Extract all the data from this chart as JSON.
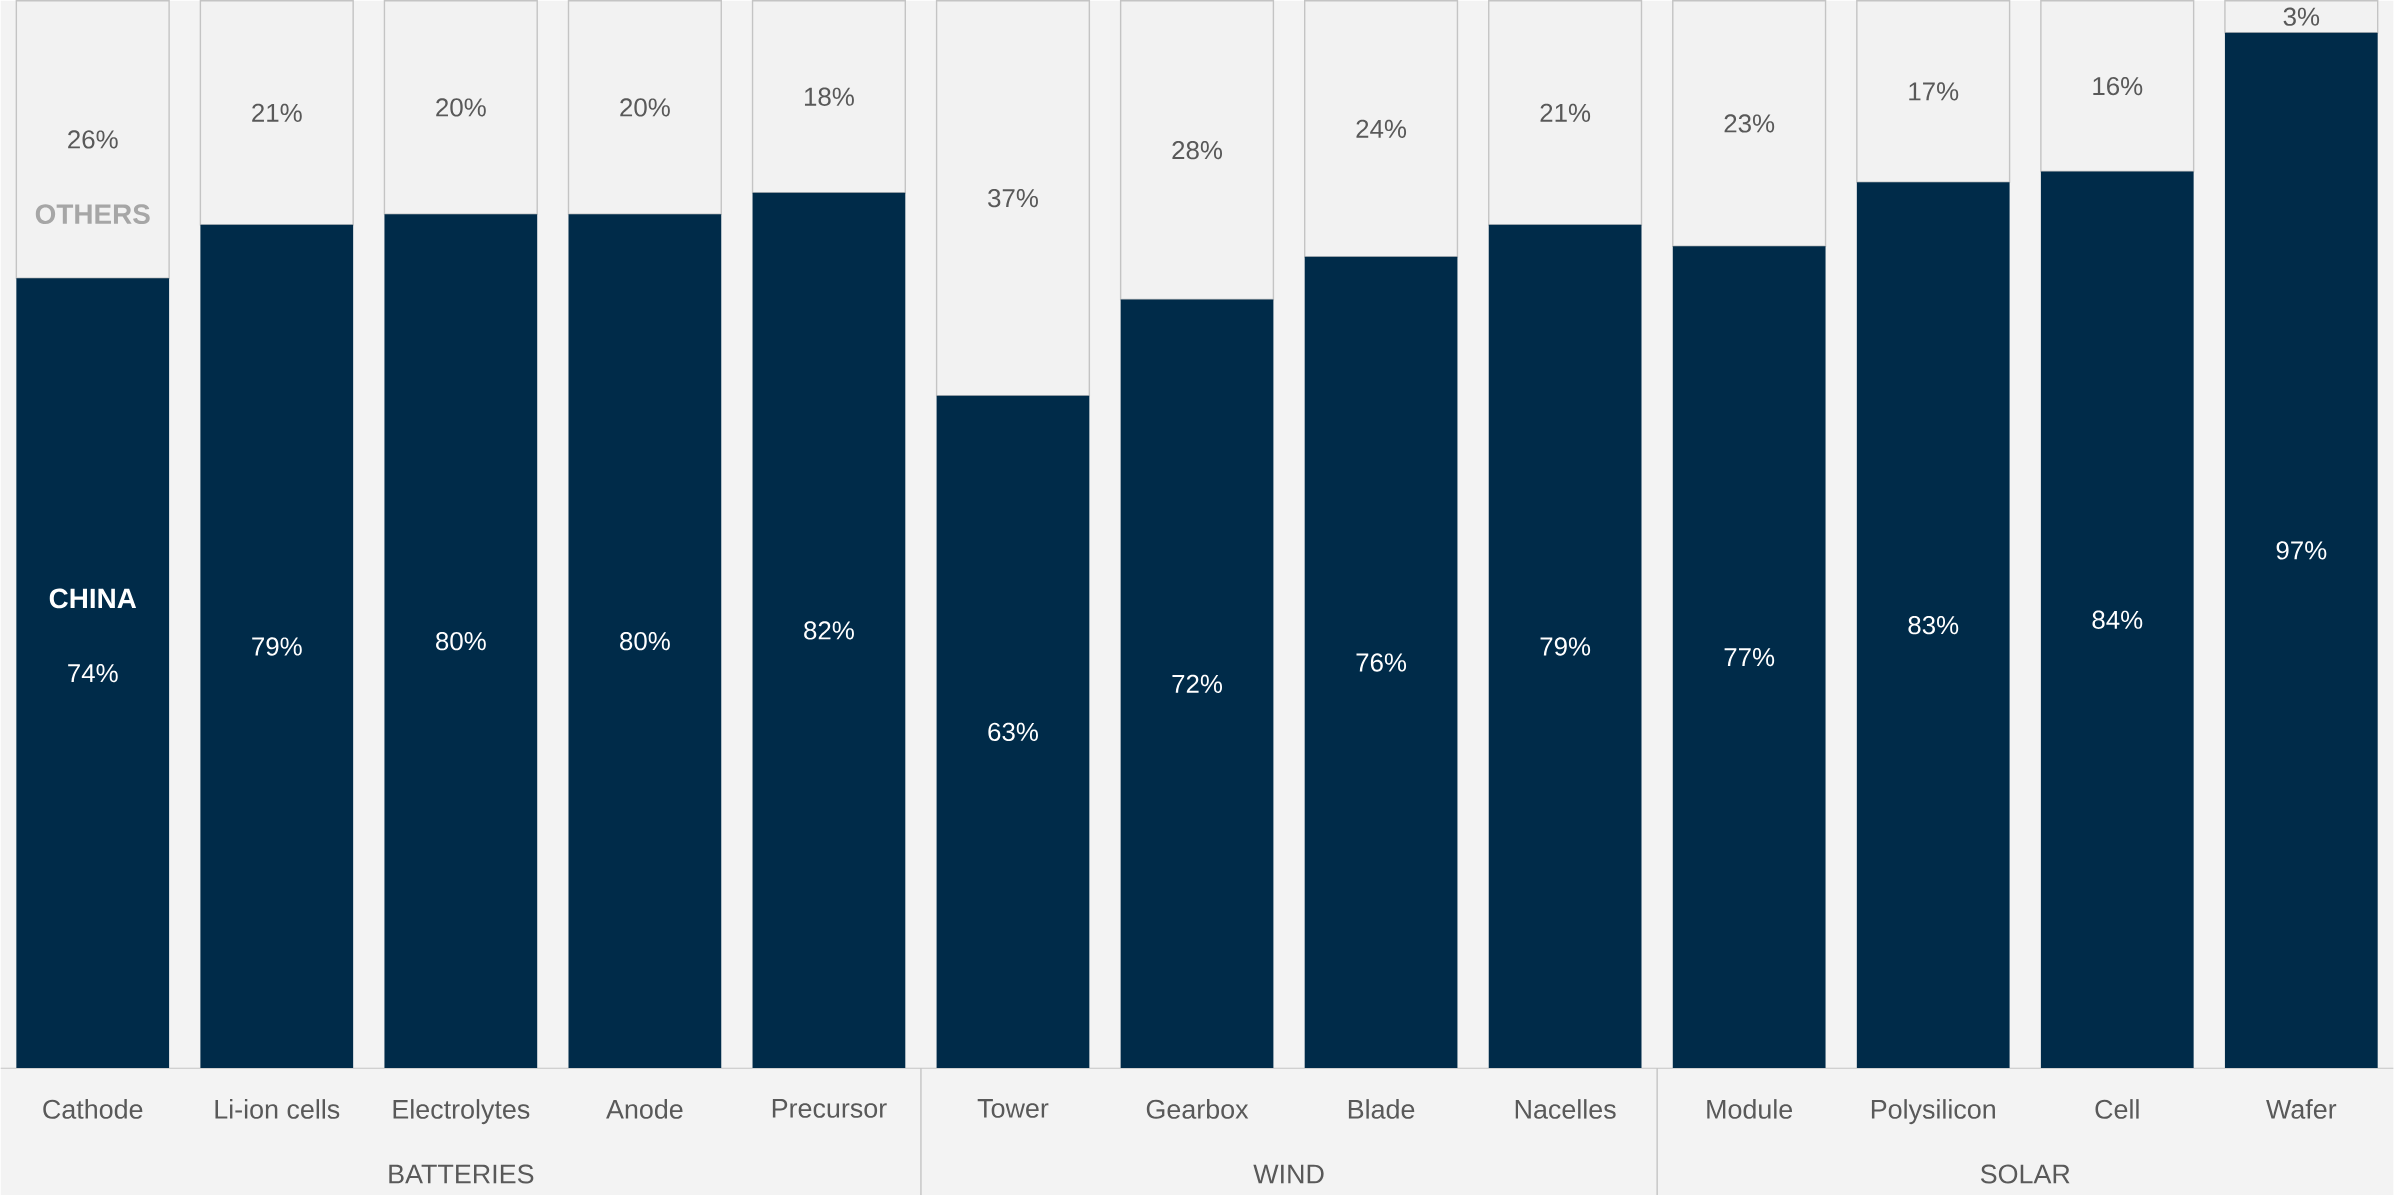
{
  "chart_data": {
    "type": "bar",
    "stacked": true,
    "categories": [
      "Cathode",
      "Li-ion cells",
      "Electrolytes",
      "Anode",
      "Precursor",
      "Tower",
      "Gearbox",
      "Blade",
      "Nacelles",
      "Module",
      "Polysilicon",
      "Cell",
      "Wafer"
    ],
    "series": [
      {
        "name": "CHINA",
        "color": "#002b49",
        "values": [
          74,
          79,
          80,
          80,
          82,
          63,
          72,
          76,
          79,
          77,
          83,
          84,
          97
        ],
        "value_labels": [
          "74%",
          "79%",
          "80%",
          "80%",
          "82%",
          "63%",
          "72%",
          "76%",
          "79%",
          "77%",
          "83%",
          "84%",
          "97%"
        ]
      },
      {
        "name": "OTHERS",
        "color": "#f2f2f2",
        "values": [
          26,
          21,
          20,
          20,
          18,
          37,
          28,
          24,
          21,
          23,
          17,
          16,
          3
        ],
        "value_labels": [
          "26%",
          "21%",
          "20%",
          "20%",
          "18%",
          "37%",
          "28%",
          "24%",
          "21%",
          "23%",
          "17%",
          "16%",
          "3%"
        ]
      }
    ],
    "ylim": [
      0,
      100
    ],
    "tick_labels": "x",
    "legend": false,
    "annotations": [
      "BATTERIES",
      "WIND",
      "SOLAR"
    ]
  }
}
